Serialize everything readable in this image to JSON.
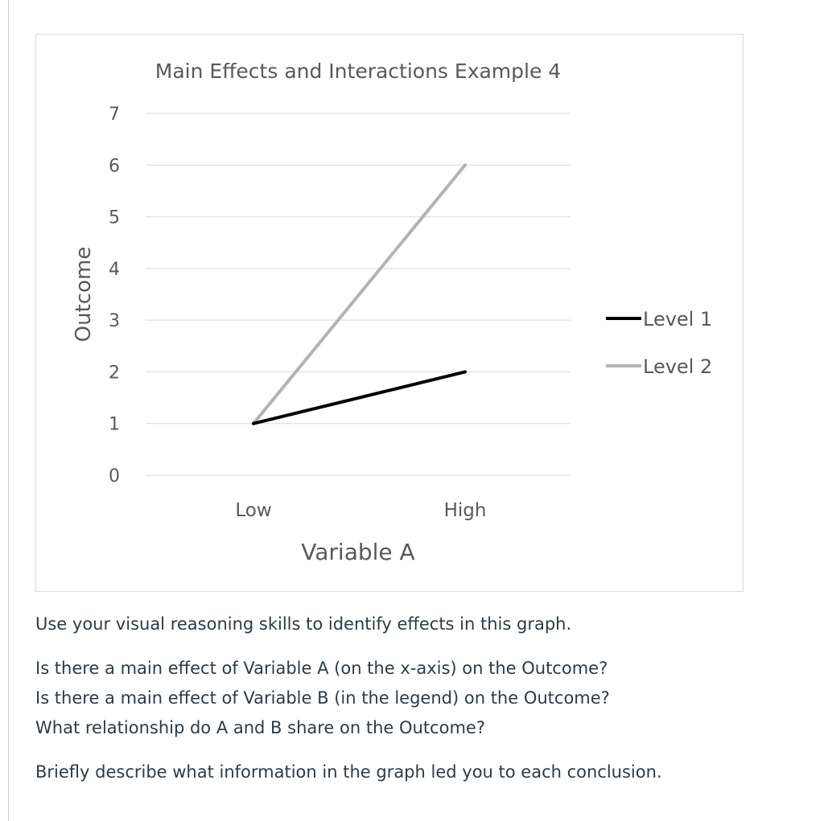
{
  "chart_data": {
    "type": "line",
    "title": "Main Effects and Interactions Example 4",
    "xlabel": "Variable A",
    "ylabel": "Outcome",
    "categories": [
      "Low",
      "High"
    ],
    "ylim": [
      0,
      7
    ],
    "yticks": [
      "0",
      "1",
      "2",
      "3",
      "4",
      "5",
      "6",
      "7"
    ],
    "grid": true,
    "legend_position": "right",
    "series": [
      {
        "name": "Level 1",
        "values": [
          1,
          2
        ],
        "color": "#000000"
      },
      {
        "name": "Level 2",
        "values": [
          1,
          6
        ],
        "color": "#b3b3b3"
      }
    ]
  },
  "question": {
    "intro": "Use your visual reasoning skills to identify effects in this graph.",
    "q1": "Is there a main effect of Variable A (on the x-axis) on the Outcome?",
    "q2": "Is there a main effect of Variable B (in the legend) on the Outcome?",
    "q3": "What relationship do A and B share on the Outcome?",
    "instruction": "Briefly describe what information in the graph led you to each conclusion."
  }
}
